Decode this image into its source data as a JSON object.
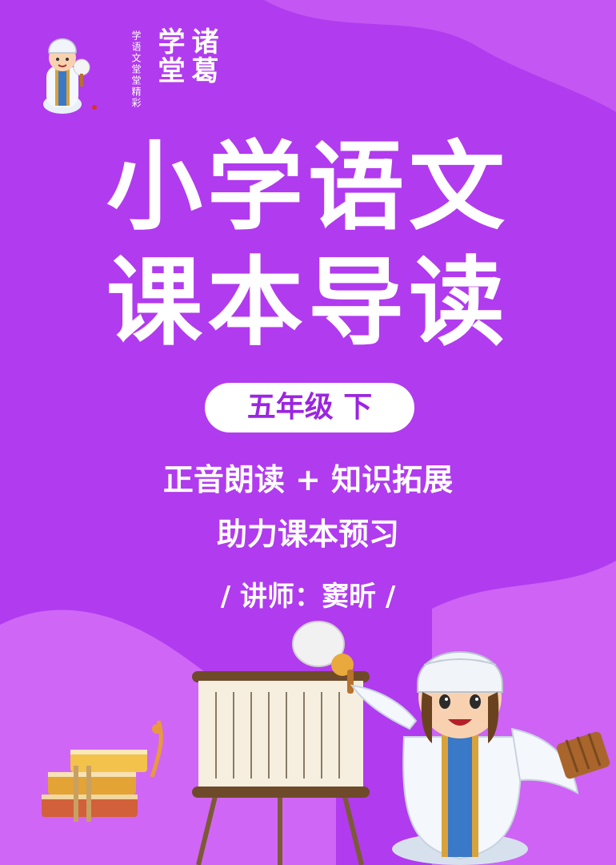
{
  "logo": {
    "brand_left": "学堂",
    "brand_right": "诸葛",
    "slogan": "学语文堂堂精彩"
  },
  "title": {
    "line1": "小学语文",
    "line2": "课本导读"
  },
  "grade_badge": "五年级 下",
  "subtitle": {
    "line1": "正音朗读 + 知识拓展",
    "line2": "助力课本预习"
  },
  "teacher_line": "/ 讲师：窦昕 /",
  "colors": {
    "background": "#b13bee",
    "accent": "#9b25e0",
    "wave": "#d46bf6"
  },
  "icons": [
    "mascot-icon",
    "books-icon",
    "scroll-easel-icon",
    "feather-fan-icon",
    "bamboo-scroll-icon"
  ]
}
